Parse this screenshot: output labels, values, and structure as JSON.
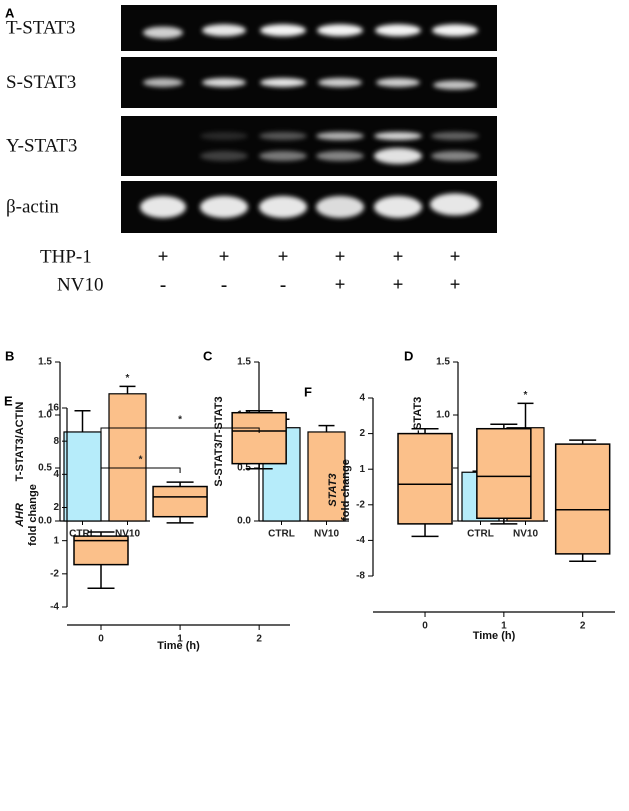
{
  "blot": {
    "panel": "A",
    "rows": [
      "T-STAT3",
      "S-STAT3",
      "Y-STAT3",
      "β-actin"
    ],
    "conditions": [
      {
        "name": "THP-1",
        "marks": [
          "+",
          "+",
          "+",
          "+",
          "+",
          "+"
        ]
      },
      {
        "name": "NV10",
        "marks": [
          "-",
          "-",
          "-",
          "+",
          "+",
          "+"
        ]
      }
    ]
  },
  "chart_data": [
    {
      "type": "bar",
      "panel": "B",
      "ylabel": "T-STAT3/ACTIN",
      "categories": [
        "CTRL",
        "NV10"
      ],
      "values": [
        0.84,
        1.2
      ],
      "errors": [
        0.2,
        0.07
      ],
      "colors": [
        "#b6ecfa",
        "#fbc08a"
      ],
      "annotations": [
        {
          "category": "NV10",
          "text": "*"
        }
      ],
      "ylim": [
        0,
        1.5
      ],
      "yticks": [
        {
          "value": 0,
          "label": "0.0"
        },
        {
          "value": 0.5,
          "label": "0.5"
        },
        {
          "value": 1,
          "label": "1.0"
        },
        {
          "value": 1.5,
          "label": "1.5"
        }
      ]
    },
    {
      "type": "bar",
      "panel": "C",
      "ylabel": "S-STAT3/T-STAT3",
      "categories": [
        "CTRL",
        "NV10"
      ],
      "values": [
        0.88,
        0.84
      ],
      "errors": [
        0.08,
        0.06
      ],
      "colors": [
        "#b6ecfa",
        "#fbc08a"
      ],
      "annotations": [],
      "ylim": [
        0,
        1.5
      ],
      "yticks": [
        {
          "value": 0,
          "label": "0.0"
        },
        {
          "value": 0.5,
          "label": "0.5"
        },
        {
          "value": 1,
          "label": "1.0"
        },
        {
          "value": 1.5,
          "label": "1.5"
        }
      ]
    },
    {
      "type": "bar",
      "panel": "D",
      "ylabel": "Y-STAT3/T-STAT3",
      "categories": [
        "CTRL",
        "NV10"
      ],
      "values": [
        0.46,
        0.88
      ],
      "errors": [
        0.01,
        0.23
      ],
      "colors": [
        "#b6ecfa",
        "#fbc08a"
      ],
      "annotations": [
        {
          "category": "NV10",
          "text": "*"
        }
      ],
      "ylim": [
        0,
        1.5
      ],
      "yticks": [
        {
          "value": 0,
          "label": "0.0"
        },
        {
          "value": 0.5,
          "label": "0.5"
        },
        {
          "value": 1,
          "label": "1.0"
        },
        {
          "value": 1.5,
          "label": "1.5"
        }
      ]
    },
    {
      "type": "box",
      "panel": "E",
      "ylabel_gene": "AHR",
      "ylabel": "fold change",
      "xlabel": "Time (h)",
      "yscale": "fold",
      "color": "#fbc08a",
      "x": [
        0,
        1,
        2
      ],
      "xlim": [
        -0.43,
        2.39
      ],
      "xticks": [
        0,
        1,
        2
      ],
      "boxes": [
        {
          "min": -2.7,
          "q1": -1.65,
          "median": 1.0,
          "q3": 1.1,
          "max": 1.2
        },
        {
          "min": 1.45,
          "q1": 1.65,
          "median": 2.5,
          "q3": 3.1,
          "max": 3.4
        },
        {
          "min": 4.5,
          "q1": 5.0,
          "median": 9.9,
          "q3": 14.5,
          "max": 15.1
        }
      ],
      "annotations": [
        {
          "x": [
            0,
            1
          ],
          "text": "*"
        },
        {
          "x": [
            0,
            2
          ],
          "text": "*"
        }
      ],
      "ylim": [
        -4,
        16
      ],
      "yticks": [
        -4,
        -2,
        1,
        2,
        4,
        8,
        16
      ]
    },
    {
      "type": "box",
      "panel": "F",
      "ylabel_gene": "STAT3",
      "ylabel": "fold change",
      "xlabel": "Time (h)",
      "yscale": "fold",
      "color": "#fbc08a",
      "x": [
        0,
        1,
        2
      ],
      "xlim": [
        -0.66,
        2.41
      ],
      "xticks": [
        0,
        1,
        2
      ],
      "boxes": [
        {
          "min": -3.7,
          "q1": -2.9,
          "median": -1.34,
          "q3": 2.0,
          "max": 2.2
        },
        {
          "min": -2.9,
          "q1": -2.6,
          "median": -1.15,
          "q3": 2.2,
          "max": 2.4
        },
        {
          "min": -6,
          "q1": -5.2,
          "median": -2.2,
          "q3": 1.63,
          "max": 1.76
        }
      ],
      "annotations": [],
      "ylim": [
        -8,
        4
      ],
      "yticks": [
        -8,
        -4,
        -2,
        1,
        2,
        4
      ]
    }
  ]
}
